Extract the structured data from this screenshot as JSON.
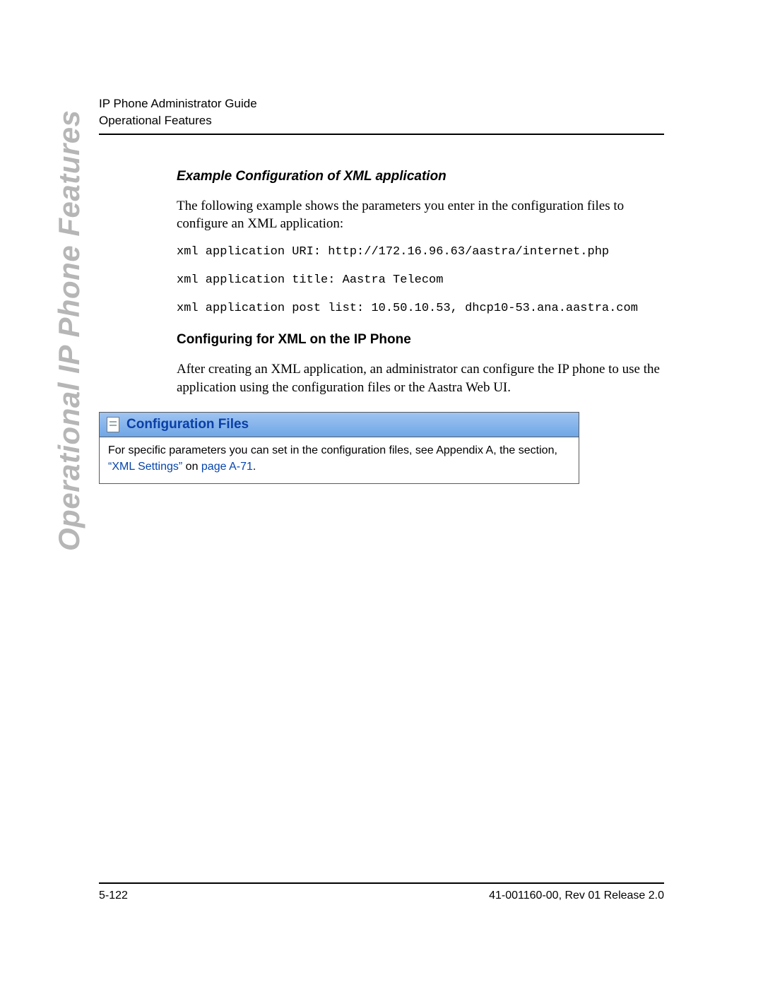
{
  "header": {
    "line1": "IP Phone Administrator Guide",
    "line2": "Operational Features"
  },
  "side_title": "Operational IP Phone Features",
  "section1": {
    "heading": "Example Configuration of XML application",
    "intro": "The following example shows the parameters you enter in the configuration files to configure an XML application:",
    "code1": "xml application URI: http://172.16.96.63/aastra/internet.php",
    "code2": "xml application title: Aastra Telecom",
    "code3": "xml application post list: 10.50.10.53, dhcp10-53.ana.aastra.com"
  },
  "section2": {
    "heading": "Configuring for XML on the IP Phone",
    "body": "After creating an XML application, an administrator can configure the IP phone to use the application using the configuration files or the Aastra Web UI."
  },
  "config_box": {
    "title": "Configuration Files",
    "body_pre": "For specific parameters you can set in the configuration files, see Appendix A, the section, ",
    "link1": "“XML Settings”",
    "body_mid": " on ",
    "link2": "page A-71",
    "body_end": "."
  },
  "footer": {
    "left": "5-122",
    "right": "41-001160-00, Rev 01  Release 2.0"
  }
}
